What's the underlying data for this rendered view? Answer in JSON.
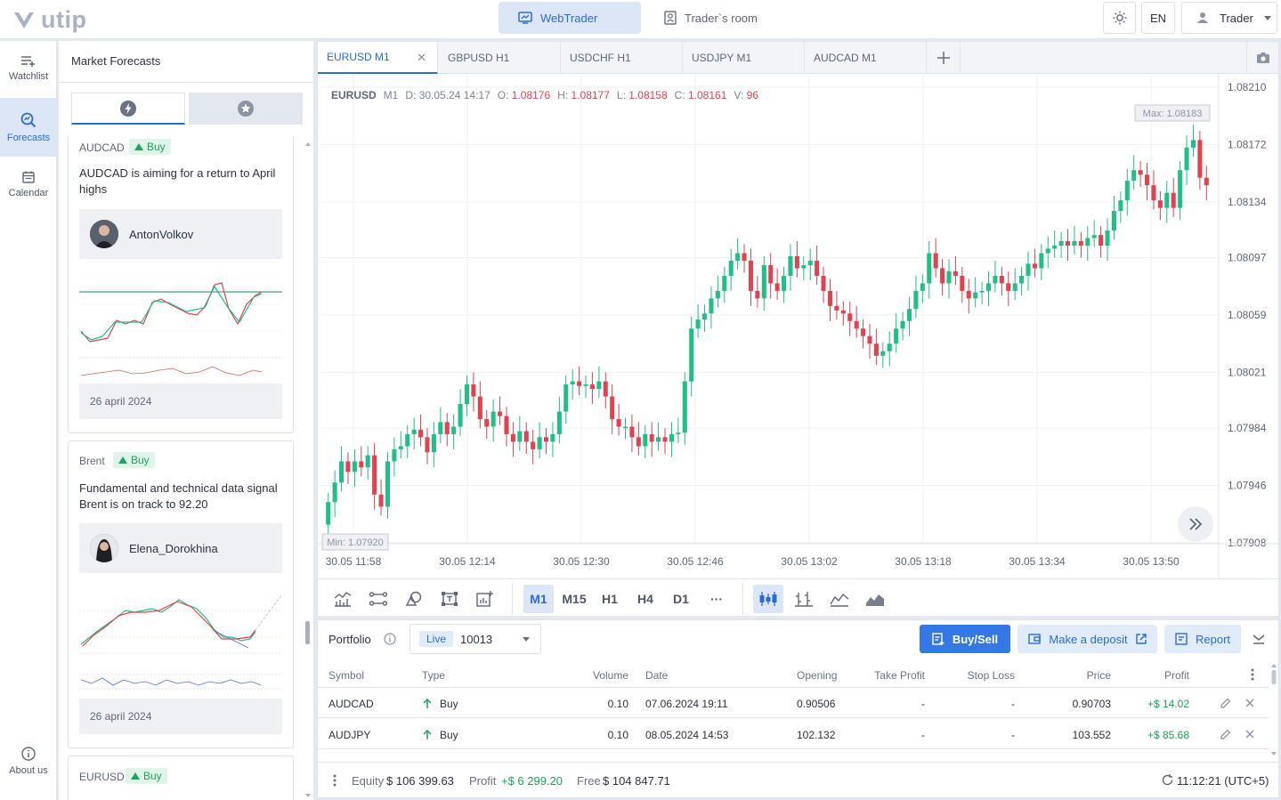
{
  "header": {
    "logo_text": "utip",
    "tabs": [
      {
        "label": "WebTrader"
      },
      {
        "label": "Trader`s room"
      }
    ],
    "lang": "EN",
    "user": "Trader"
  },
  "sidebar": {
    "items": [
      {
        "label": "Watchlist"
      },
      {
        "label": "Forecasts"
      },
      {
        "label": "Calendar"
      },
      {
        "label": "About us"
      }
    ]
  },
  "forecasts": {
    "title": "Market Forecasts",
    "cards": [
      {
        "symbol": "AUDCAD",
        "signal": "Buy",
        "headline": "AUDCAD is aiming for a return to April highs",
        "author": "AntonVolkov",
        "date": "26 april 2024"
      },
      {
        "symbol": "Brent",
        "signal": "Buy",
        "headline": "Fundamental and technical data signal Brent is on track to 92.20",
        "author": "Elena_Dorokhina",
        "date": "26 april 2024"
      },
      {
        "symbol": "EURUSD",
        "signal": "Buy"
      }
    ]
  },
  "chart_tabs": [
    {
      "label": "EURUSD M1"
    },
    {
      "label": "GBPUSD H1"
    },
    {
      "label": "USDCHF H1"
    },
    {
      "label": "USDJPY M1"
    },
    {
      "label": "AUDCAD M1"
    }
  ],
  "ohlc": {
    "symbol": "EURUSD",
    "tf": "M1",
    "d_label": "D:",
    "d": "30.05.24 14:17",
    "o_label": "O:",
    "o": "1.08176",
    "h_label": "H:",
    "h": "1.08177",
    "l_label": "L:",
    "l": "1.08158",
    "c_label": "C:",
    "c": "1.08161",
    "v_label": "V:",
    "v": "96"
  },
  "chart_data": {
    "type": "candlestick",
    "y_ticks": [
      "1.08210",
      "1.08172",
      "1.08134",
      "1.08097",
      "1.08059",
      "1.08021",
      "1.07984",
      "1.07946",
      "1.07908"
    ],
    "x_ticks": [
      "30.05 11:58",
      "30.05 12:14",
      "30.05 12:30",
      "30.05 12:46",
      "30.05 13:02",
      "30.05 13:18",
      "30.05 13:34",
      "30.05 13:50"
    ],
    "ylim": [
      1.07908,
      1.0821
    ],
    "max_label": "Max: 1.08183",
    "min_label": "Min: 1.07920",
    "close": [
      1.07935,
      1.07948,
      1.07962,
      1.07955,
      1.07962,
      1.07958,
      1.07966,
      1.0794,
      1.07932,
      1.07962,
      1.0797,
      1.07972,
      1.0798,
      1.07983,
      1.07978,
      1.07968,
      1.0798,
      1.07988,
      1.0798,
      1.07985,
      1.08,
      1.08013,
      1.08005,
      1.0799,
      1.07985,
      1.07995,
      1.07992,
      1.0798,
      1.07975,
      1.07982,
      1.07975,
      1.0797,
      1.07978,
      1.07975,
      1.0798,
      1.07995,
      1.08013,
      1.08015,
      1.08012,
      1.08013,
      1.0801,
      1.08015,
      1.08005,
      1.0799,
      1.07985,
      1.07985,
      1.07978,
      1.07972,
      1.0798,
      1.07975,
      1.07978,
      1.07975,
      1.0798,
      1.07981,
      1.08015,
      1.0805,
      1.08056,
      1.0806,
      1.0807,
      1.08075,
      1.08085,
      1.08095,
      1.081,
      1.08095,
      1.08075,
      1.0807,
      1.08092,
      1.0808,
      1.08075,
      1.08085,
      1.08098,
      1.0809,
      1.08092,
      1.08095,
      1.08085,
      1.08075,
      1.08065,
      1.08062,
      1.0806,
      1.08055,
      1.0805,
      1.08045,
      1.0804,
      1.08032,
      1.08035,
      1.0804,
      1.0805,
      1.08055,
      1.08063,
      1.08075,
      1.0808,
      1.081,
      1.0809,
      1.0808,
      1.08088,
      1.08085,
      1.08075,
      1.0807,
      1.08074,
      1.08075,
      1.0808,
      1.08085,
      1.0808,
      1.08075,
      1.0808,
      1.08085,
      1.08093,
      1.0809,
      1.081,
      1.08103,
      1.08105,
      1.08108,
      1.08105,
      1.08108,
      1.08105,
      1.0811,
      1.08112,
      1.08105,
      1.08115,
      1.08128,
      1.08135,
      1.08148,
      1.08155,
      1.08152,
      1.08145,
      1.08135,
      1.0813,
      1.0814,
      1.0813,
      1.08155,
      1.0817,
      1.08175,
      1.0815,
      1.08145
    ],
    "open": [
      1.0792,
      1.07935,
      1.07948,
      1.07962,
      1.07955,
      1.07962,
      1.07958,
      1.07966,
      1.0794,
      1.07932,
      1.07962,
      1.0797,
      1.07972,
      1.0798,
      1.07983,
      1.07978,
      1.07968,
      1.0798,
      1.07988,
      1.0798,
      1.07985,
      1.08,
      1.08013,
      1.08005,
      1.0799,
      1.07985,
      1.07995,
      1.07992,
      1.0798,
      1.07975,
      1.07982,
      1.07975,
      1.0797,
      1.07978,
      1.07975,
      1.0798,
      1.07995,
      1.08013,
      1.08015,
      1.08012,
      1.08013,
      1.0801,
      1.08015,
      1.08005,
      1.0799,
      1.07985,
      1.07985,
      1.07978,
      1.07972,
      1.0798,
      1.07975,
      1.07978,
      1.07975,
      1.0798,
      1.07981,
      1.08015,
      1.0805,
      1.08056,
      1.0806,
      1.0807,
      1.08075,
      1.08085,
      1.08095,
      1.081,
      1.08095,
      1.08075,
      1.0807,
      1.08092,
      1.0808,
      1.08075,
      1.08085,
      1.08098,
      1.0809,
      1.08092,
      1.08095,
      1.08085,
      1.08075,
      1.08065,
      1.08062,
      1.0806,
      1.08055,
      1.0805,
      1.08045,
      1.0804,
      1.08032,
      1.08035,
      1.0804,
      1.0805,
      1.08055,
      1.08063,
      1.08075,
      1.0808,
      1.081,
      1.0809,
      1.0808,
      1.08088,
      1.08085,
      1.08075,
      1.0807,
      1.08074,
      1.08075,
      1.0808,
      1.08085,
      1.0808,
      1.08075,
      1.0808,
      1.08085,
      1.08093,
      1.0809,
      1.081,
      1.08103,
      1.08105,
      1.08108,
      1.08105,
      1.08108,
      1.08105,
      1.0811,
      1.08112,
      1.08105,
      1.08115,
      1.08128,
      1.08135,
      1.08148,
      1.08155,
      1.08152,
      1.08145,
      1.08135,
      1.0813,
      1.0814,
      1.0813,
      1.08155,
      1.0817,
      1.08175,
      1.0815
    ],
    "colors": {
      "up": "#1fbf85",
      "down": "#e0434f",
      "grid": "#eef1f5"
    }
  },
  "toolbar": {
    "timeframes": [
      "M1",
      "M15",
      "H1",
      "H4",
      "D1"
    ],
    "more": "···"
  },
  "portfolio": {
    "label": "Portfolio",
    "account_type": "Live",
    "account_id": "10013",
    "buttons": {
      "buy_sell": "Buy/Sell",
      "deposit": "Make a deposit",
      "report": "Report"
    },
    "columns": [
      "Symbol",
      "Type",
      "Volume",
      "Date",
      "Opening",
      "Take Profit",
      "Stop Loss",
      "Price",
      "Profit"
    ],
    "rows": [
      {
        "symbol": "AUDCAD",
        "type": "Buy",
        "volume": "0.10",
        "date": "07.06.2024 19:11",
        "opening": "0.90506",
        "tp": "-",
        "sl": "-",
        "price": "0.90703",
        "profit": "+$ 14.02"
      },
      {
        "symbol": "AUDJPY",
        "type": "Buy",
        "volume": "0.10",
        "date": "08.05.2024 14:53",
        "opening": "102.132",
        "tp": "-",
        "sl": "-",
        "price": "103.552",
        "profit": "+$ 85.68"
      }
    ],
    "footer": {
      "equity_label": "Equity",
      "equity": "$ 106 399.63",
      "profit_label": "Profit",
      "profit": "+$ 6 299.20",
      "free_label": "Free",
      "free": "$ 104 847.71",
      "time": "11:12:21 (UTC+5)"
    }
  }
}
